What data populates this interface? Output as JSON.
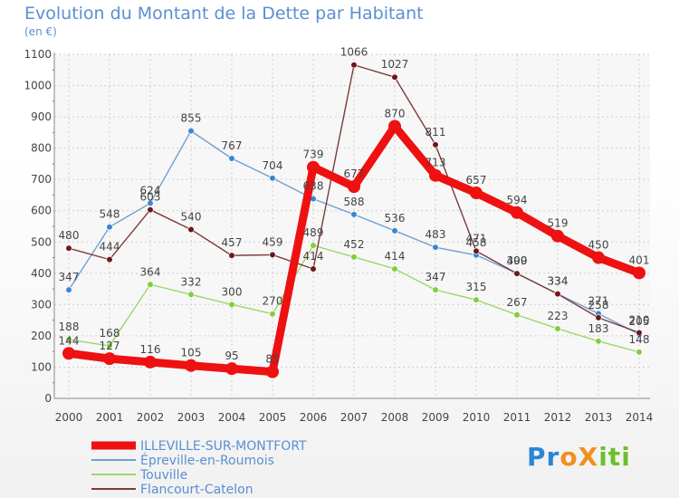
{
  "header": {
    "title": "Evolution du Montant de la Dette par Habitant",
    "unit": "(en €)"
  },
  "logo": {
    "text": "ProXiti",
    "letters": [
      {
        "ch": "P",
        "color": "#2a86d5"
      },
      {
        "ch": "r",
        "color": "#2a86d5"
      },
      {
        "ch": "o",
        "color": "#f0901e"
      },
      {
        "ch": "X",
        "color": "#f0901e"
      },
      {
        "ch": "i",
        "color": "#6cbf2a"
      },
      {
        "ch": "t",
        "color": "#6cbf2a"
      },
      {
        "ch": "i",
        "color": "#6cbf2a"
      }
    ]
  },
  "chart_data": {
    "type": "line",
    "title": "Evolution du Montant de la Dette par Habitant",
    "subtitle": "(en €)",
    "xlabel": "",
    "ylabel": "",
    "categories": [
      "2000",
      "2001",
      "2002",
      "2003",
      "2004",
      "2005",
      "2006",
      "2007",
      "2008",
      "2009",
      "2010",
      "2011",
      "2012",
      "2013",
      "2014"
    ],
    "ylim": [
      0,
      1100
    ],
    "yticks": [
      0,
      100,
      200,
      300,
      400,
      500,
      600,
      700,
      800,
      900,
      1000,
      1100
    ],
    "grid": true,
    "legend_position": "bottom-left",
    "series": [
      {
        "name": "ILLEVILLE-SUR-MONTFORT",
        "color": "#ee1111",
        "point_color": "#ee1111",
        "values": [
          144,
          127,
          116,
          105,
          95,
          85,
          739,
          677,
          870,
          713,
          657,
          594,
          519,
          450,
          401
        ]
      },
      {
        "name": "Épreville-en-Roumois",
        "color": "#6fa0d2",
        "point_color": "#3a86d0",
        "values": [
          347,
          548,
          624,
          855,
          767,
          704,
          638,
          588,
          536,
          483,
          458,
          400,
          334,
          271,
          205
        ]
      },
      {
        "name": "Touville",
        "color": "#9ad86a",
        "point_color": "#7fcf3c",
        "values": [
          188,
          168,
          364,
          332,
          300,
          270,
          489,
          452,
          414,
          347,
          315,
          267,
          223,
          183,
          148
        ]
      },
      {
        "name": "Flancourt-Catelon",
        "color": "#7d3a3a",
        "point_color": "#6a1818",
        "values": [
          480,
          444,
          603,
          540,
          457,
          459,
          414,
          1066,
          1027,
          811,
          471,
          399,
          334,
          258,
          210
        ]
      }
    ]
  }
}
